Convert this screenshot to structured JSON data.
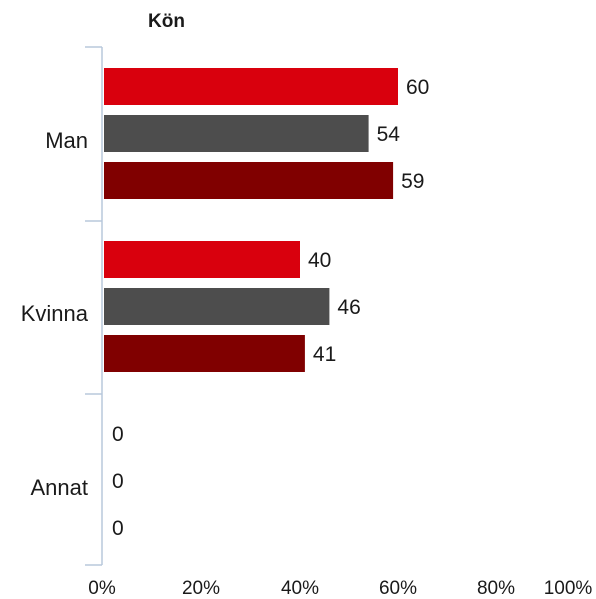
{
  "chart_data": {
    "type": "bar",
    "orientation": "horizontal",
    "title": "Kön",
    "xlabel": "",
    "ylabel": "",
    "categories": [
      "Man",
      "Kvinna",
      "Annat"
    ],
    "series": [
      {
        "values": [
          60,
          40,
          0
        ],
        "color": "#d9000d"
      },
      {
        "values": [
          54,
          46,
          0
        ],
        "color": "#4d4d4d"
      },
      {
        "values": [
          59,
          41,
          0
        ],
        "color": "#800000"
      }
    ],
    "xlim": [
      0,
      100
    ],
    "x_ticks": [
      "0%",
      "20%",
      "40%",
      "60%",
      "80%",
      "100%"
    ],
    "grid": false,
    "legend": "none",
    "data_labels": true
  }
}
